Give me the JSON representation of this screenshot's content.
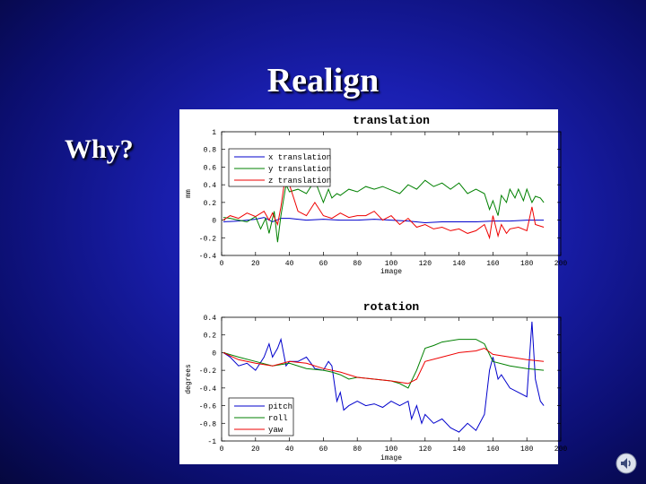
{
  "slide": {
    "title": "Realign",
    "bullet": "Why?"
  },
  "colors": {
    "background": "#1a1fb0",
    "series_x": "#0000cc",
    "series_y": "#008000",
    "series_z": "#ee0000"
  },
  "icons": {
    "sound": "speaker-icon"
  },
  "chart_data": [
    {
      "type": "line",
      "title": "translation",
      "xlabel": "image",
      "ylabel": "mm",
      "xlim": [
        0,
        200
      ],
      "ylim": [
        -0.4,
        1
      ],
      "xticks": [
        0,
        20,
        40,
        60,
        80,
        100,
        120,
        140,
        160,
        180,
        200
      ],
      "yticks": [
        1,
        0.8,
        0.6,
        0.4,
        0.2,
        0,
        -0.2,
        -0.4
      ],
      "legend_position": "top-left",
      "grid": false,
      "series": [
        {
          "name": "x translation",
          "color": "#0000cc",
          "x": [
            1,
            10,
            20,
            25,
            30,
            35,
            40,
            50,
            60,
            70,
            80,
            90,
            100,
            110,
            120,
            130,
            140,
            150,
            160,
            170,
            180,
            190
          ],
          "y": [
            -0.02,
            -0.01,
            0.01,
            0.03,
            -0.02,
            0.02,
            0.02,
            0.0,
            0.01,
            0.0,
            0.0,
            0.01,
            0.0,
            -0.01,
            -0.03,
            -0.02,
            -0.02,
            -0.02,
            -0.01,
            -0.01,
            0.0,
            0.0
          ]
        },
        {
          "name": "y translation",
          "color": "#008000",
          "x": [
            1,
            5,
            10,
            15,
            20,
            23,
            26,
            28,
            31,
            33,
            35,
            38,
            40,
            45,
            50,
            55,
            60,
            63,
            65,
            68,
            70,
            75,
            80,
            85,
            90,
            95,
            100,
            105,
            110,
            115,
            120,
            125,
            130,
            135,
            140,
            145,
            150,
            155,
            158,
            160,
            163,
            165,
            168,
            170,
            173,
            175,
            178,
            180,
            183,
            185,
            188,
            190
          ],
          "y": [
            0.03,
            0.02,
            0.0,
            -0.02,
            0.04,
            -0.1,
            0.02,
            -0.15,
            0.1,
            -0.25,
            0.05,
            0.4,
            0.32,
            0.35,
            0.3,
            0.45,
            0.2,
            0.35,
            0.25,
            0.3,
            0.28,
            0.35,
            0.32,
            0.38,
            0.35,
            0.38,
            0.34,
            0.3,
            0.4,
            0.35,
            0.45,
            0.38,
            0.42,
            0.35,
            0.42,
            0.3,
            0.35,
            0.3,
            0.12,
            0.22,
            0.05,
            0.28,
            0.2,
            0.35,
            0.25,
            0.35,
            0.22,
            0.35,
            0.2,
            0.27,
            0.25,
            0.2
          ]
        },
        {
          "name": "z translation",
          "color": "#ee0000",
          "x": [
            1,
            5,
            10,
            15,
            20,
            25,
            28,
            30,
            33,
            35,
            38,
            40,
            45,
            50,
            55,
            60,
            65,
            70,
            75,
            80,
            85,
            90,
            95,
            100,
            105,
            110,
            115,
            120,
            125,
            130,
            135,
            140,
            145,
            150,
            155,
            158,
            160,
            163,
            165,
            168,
            170,
            175,
            180,
            183,
            185,
            190
          ],
          "y": [
            0.0,
            0.05,
            0.02,
            0.08,
            0.04,
            0.1,
            0.0,
            0.08,
            -0.05,
            0.15,
            0.55,
            0.4,
            0.1,
            0.05,
            0.2,
            0.05,
            0.02,
            0.08,
            0.03,
            0.05,
            0.05,
            0.1,
            0.0,
            0.05,
            -0.05,
            0.02,
            -0.08,
            -0.05,
            -0.1,
            -0.08,
            -0.12,
            -0.1,
            -0.15,
            -0.12,
            -0.05,
            -0.2,
            0.05,
            -0.18,
            -0.05,
            -0.15,
            -0.1,
            -0.08,
            -0.12,
            0.15,
            -0.05,
            -0.08
          ]
        }
      ]
    },
    {
      "type": "line",
      "title": "rotation",
      "xlabel": "image",
      "ylabel": "degrees",
      "xlim": [
        0,
        200
      ],
      "ylim": [
        -1,
        0.4
      ],
      "xticks": [
        0,
        20,
        40,
        60,
        80,
        100,
        120,
        140,
        160,
        180,
        200
      ],
      "yticks": [
        0.4,
        0.2,
        0,
        -0.2,
        -0.4,
        -0.6,
        -0.8,
        -1
      ],
      "legend_position": "bottom-left",
      "grid": false,
      "series": [
        {
          "name": "pitch",
          "color": "#0000cc",
          "x": [
            1,
            5,
            10,
            15,
            20,
            25,
            28,
            30,
            33,
            35,
            38,
            40,
            45,
            50,
            55,
            60,
            63,
            65,
            68,
            70,
            72,
            75,
            80,
            85,
            90,
            95,
            100,
            105,
            110,
            112,
            115,
            118,
            120,
            125,
            130,
            135,
            140,
            145,
            150,
            155,
            158,
            160,
            163,
            165,
            170,
            175,
            180,
            183,
            185,
            188,
            190
          ],
          "y": [
            0.0,
            -0.05,
            -0.15,
            -0.12,
            -0.2,
            -0.05,
            0.1,
            -0.05,
            0.05,
            0.15,
            -0.15,
            -0.1,
            -0.1,
            -0.05,
            -0.18,
            -0.2,
            -0.1,
            -0.15,
            -0.55,
            -0.45,
            -0.65,
            -0.6,
            -0.55,
            -0.6,
            -0.58,
            -0.62,
            -0.55,
            -0.6,
            -0.55,
            -0.75,
            -0.6,
            -0.8,
            -0.7,
            -0.8,
            -0.75,
            -0.85,
            -0.9,
            -0.8,
            -0.88,
            -0.7,
            -0.2,
            -0.05,
            -0.3,
            -0.25,
            -0.4,
            -0.45,
            -0.5,
            0.35,
            -0.3,
            -0.55,
            -0.6
          ]
        },
        {
          "name": "roll",
          "color": "#008000",
          "x": [
            1,
            10,
            20,
            30,
            40,
            50,
            60,
            65,
            70,
            75,
            80,
            90,
            100,
            105,
            110,
            115,
            120,
            125,
            130,
            140,
            150,
            155,
            160,
            170,
            180,
            190
          ],
          "y": [
            0.0,
            -0.05,
            -0.1,
            -0.15,
            -0.12,
            -0.18,
            -0.2,
            -0.22,
            -0.25,
            -0.3,
            -0.28,
            -0.3,
            -0.32,
            -0.35,
            -0.4,
            -0.2,
            0.05,
            0.08,
            0.12,
            0.15,
            0.15,
            0.1,
            -0.1,
            -0.15,
            -0.18,
            -0.2
          ]
        },
        {
          "name": "yaw",
          "color": "#ee0000",
          "x": [
            1,
            10,
            20,
            30,
            40,
            50,
            60,
            70,
            75,
            80,
            90,
            100,
            110,
            115,
            120,
            130,
            140,
            150,
            155,
            160,
            170,
            180,
            190
          ],
          "y": [
            0.0,
            -0.08,
            -0.12,
            -0.15,
            -0.1,
            -0.12,
            -0.18,
            -0.22,
            -0.25,
            -0.28,
            -0.3,
            -0.32,
            -0.35,
            -0.3,
            -0.1,
            -0.05,
            0.0,
            0.02,
            0.05,
            -0.02,
            -0.05,
            -0.08,
            -0.1
          ]
        }
      ]
    }
  ]
}
